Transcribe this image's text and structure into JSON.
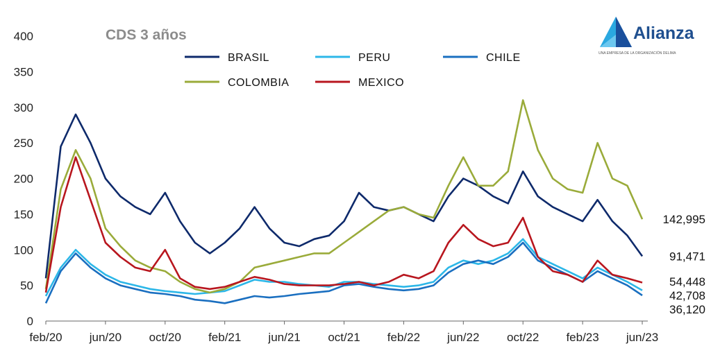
{
  "brand": {
    "name": "Alianza",
    "tagline": "UNA EMPRESA DE LA ORGANIZACIÓN DELIMA"
  },
  "chart_data": {
    "type": "line",
    "title": "CDS 3 años",
    "xlabel": "",
    "ylabel": "",
    "ylim": [
      0,
      400
    ],
    "yticks": [
      0,
      50,
      100,
      150,
      200,
      250,
      300,
      350,
      400
    ],
    "xtick_labels": [
      "feb/20",
      "jun/20",
      "oct/20",
      "feb/21",
      "jun/21",
      "oct/21",
      "feb/22",
      "jun/22",
      "oct/22",
      "feb/23",
      "jun/23"
    ],
    "x_dates": [
      "2020-02",
      "2020-03",
      "2020-04",
      "2020-05",
      "2020-06",
      "2020-07",
      "2020-08",
      "2020-09",
      "2020-10",
      "2020-11",
      "2020-12",
      "2021-01",
      "2021-02",
      "2021-03",
      "2021-04",
      "2021-05",
      "2021-06",
      "2021-07",
      "2021-08",
      "2021-09",
      "2021-10",
      "2021-11",
      "2021-12",
      "2022-01",
      "2022-02",
      "2022-03",
      "2022-04",
      "2022-05",
      "2022-06",
      "2022-07",
      "2022-08",
      "2022-09",
      "2022-10",
      "2022-11",
      "2022-12",
      "2023-01",
      "2023-02",
      "2023-03",
      "2023-04",
      "2023-05",
      "2023-06"
    ],
    "grid": false,
    "legend_position": "top",
    "series": [
      {
        "name": "BRASIL",
        "color": "#0e2a6b",
        "end_label": "91,471",
        "values": [
          60,
          245,
          290,
          250,
          200,
          175,
          160,
          150,
          180,
          140,
          110,
          95,
          110,
          130,
          160,
          130,
          110,
          105,
          115,
          120,
          140,
          180,
          160,
          155,
          160,
          150,
          140,
          175,
          200,
          190,
          175,
          165,
          210,
          175,
          160,
          150,
          140,
          170,
          140,
          120,
          91
        ]
      },
      {
        "name": "PERU",
        "color": "#2cb7e8",
        "end_label": "42,708",
        "values": [
          35,
          75,
          100,
          80,
          65,
          55,
          50,
          45,
          42,
          40,
          38,
          40,
          42,
          50,
          58,
          55,
          55,
          52,
          50,
          48,
          55,
          55,
          52,
          50,
          48,
          50,
          55,
          75,
          85,
          80,
          85,
          95,
          115,
          90,
          80,
          70,
          60,
          75,
          65,
          55,
          43
        ]
      },
      {
        "name": "CHILE",
        "color": "#1a6fc0",
        "end_label": "36,120",
        "values": [
          25,
          70,
          95,
          75,
          60,
          50,
          45,
          40,
          38,
          35,
          30,
          28,
          25,
          30,
          35,
          33,
          35,
          38,
          40,
          42,
          50,
          52,
          48,
          45,
          43,
          45,
          50,
          68,
          80,
          85,
          80,
          90,
          110,
          85,
          75,
          65,
          55,
          70,
          60,
          50,
          36
        ]
      },
      {
        "name": "COLOMBIA",
        "color": "#9aab3a",
        "end_label": "142,995",
        "values": [
          45,
          185,
          240,
          200,
          130,
          105,
          85,
          75,
          70,
          55,
          45,
          40,
          45,
          55,
          75,
          80,
          85,
          90,
          95,
          95,
          110,
          125,
          140,
          155,
          160,
          150,
          145,
          190,
          230,
          190,
          190,
          210,
          310,
          240,
          200,
          185,
          180,
          250,
          200,
          190,
          143
        ]
      },
      {
        "name": "MEXICO",
        "color": "#b8161e",
        "end_label": "54,448",
        "values": [
          40,
          160,
          230,
          170,
          110,
          90,
          75,
          70,
          100,
          60,
          48,
          45,
          48,
          55,
          62,
          58,
          52,
          50,
          50,
          50,
          52,
          55,
          50,
          55,
          65,
          60,
          70,
          110,
          135,
          115,
          105,
          110,
          145,
          90,
          70,
          65,
          55,
          85,
          65,
          60,
          54
        ]
      }
    ]
  }
}
